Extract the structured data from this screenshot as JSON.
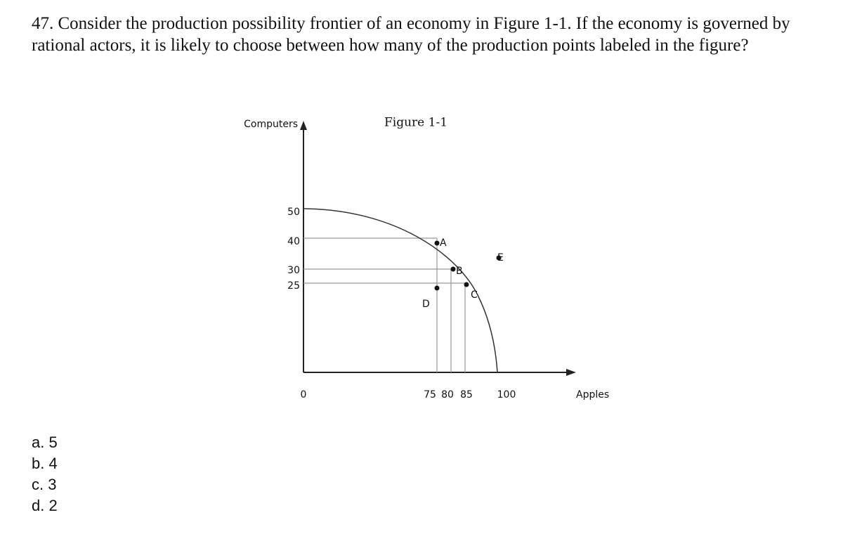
{
  "question": "47. Consider the production possibility frontier of an economy in Figure 1-1. If the economy is governed by rational actors, it is likely to choose between how many of the production points labeled in the figure?",
  "figure": {
    "title": "Figure 1-1",
    "y_label": "Computers",
    "x_label": "Apples",
    "origin": "0",
    "y_ticks": [
      "50",
      "40",
      "30",
      "25"
    ],
    "x_ticks": [
      "75",
      "80",
      "85",
      "100"
    ],
    "points": [
      "A",
      "B",
      "C",
      "D",
      "E"
    ]
  },
  "options": [
    "a. 5",
    "b. 4",
    "c. 3",
    "d. 2"
  ]
}
